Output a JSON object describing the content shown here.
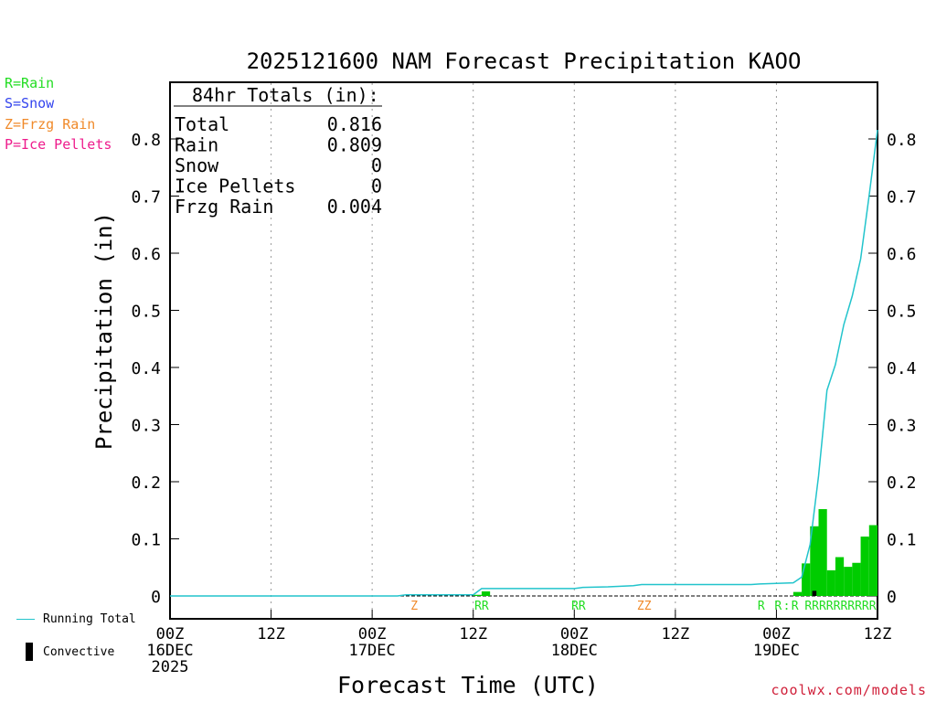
{
  "title": "2025121600 NAM Forecast Precipitation KAOO",
  "ylabel": "Precipitation (in)",
  "xlabel": "Forecast Time (UTC)",
  "source": "coolwx.com/models",
  "precip_types": [
    {
      "label": "R=Rain",
      "color": "#22dd22"
    },
    {
      "label": "S=Snow",
      "color": "#3344ee"
    },
    {
      "label": "Z=Frzg Rain",
      "color": "#f08a2a"
    },
    {
      "label": "P=Ice Pellets",
      "color": "#ee1c8c"
    }
  ],
  "legend": {
    "running_total": "Running Total",
    "convective": "Convective"
  },
  "totals_box": {
    "header": "84hr Totals (in):",
    "rows": [
      {
        "label": "Total",
        "value": "0.816"
      },
      {
        "label": "Rain",
        "value": "0.809"
      },
      {
        "label": "Snow",
        "value": "0"
      },
      {
        "label": "Ice Pellets",
        "value": "0"
      },
      {
        "label": "Frzg Rain",
        "value": "0.004"
      }
    ]
  },
  "colors": {
    "running_total": "#22c4cc",
    "bars": "#00cc00",
    "convective": "#000000",
    "grid": "#999999"
  },
  "chart_data": {
    "type": "bar",
    "x_unit": "forecast hour",
    "xlim": [
      0,
      84
    ],
    "ylim": [
      -0.04,
      0.9
    ],
    "yticks": [
      0,
      0.1,
      0.2,
      0.3,
      0.4,
      0.5,
      0.6,
      0.7,
      0.8
    ],
    "ytick_labels": [
      "0",
      "0.1",
      "0.2",
      "0.3",
      "0.4",
      "0.5",
      "0.6",
      "0.7",
      "0.8"
    ],
    "xticks": [
      {
        "hour": 0,
        "lines": [
          "00Z",
          "16DEC",
          "2025"
        ]
      },
      {
        "hour": 12,
        "lines": [
          "12Z"
        ]
      },
      {
        "hour": 24,
        "lines": [
          "00Z",
          "17DEC"
        ]
      },
      {
        "hour": 36,
        "lines": [
          "12Z"
        ]
      },
      {
        "hour": 48,
        "lines": [
          "00Z",
          "18DEC"
        ]
      },
      {
        "hour": 60,
        "lines": [
          "12Z"
        ]
      },
      {
        "hour": 72,
        "lines": [
          "00Z",
          "19DEC"
        ]
      },
      {
        "hour": 84,
        "lines": [
          "12Z"
        ]
      }
    ],
    "grid_hours": [
      12,
      24,
      36,
      48,
      60,
      72
    ],
    "series": [
      {
        "name": "Running Total",
        "type": "line",
        "points": [
          [
            0,
            0.0
          ],
          [
            27,
            0.0
          ],
          [
            28,
            0.002
          ],
          [
            36,
            0.002
          ],
          [
            37,
            0.013
          ],
          [
            48,
            0.013
          ],
          [
            49,
            0.015
          ],
          [
            52,
            0.016
          ],
          [
            55,
            0.018
          ],
          [
            56,
            0.02
          ],
          [
            60,
            0.02
          ],
          [
            69,
            0.02
          ],
          [
            70,
            0.021
          ],
          [
            72,
            0.022
          ],
          [
            74,
            0.023
          ],
          [
            75,
            0.033
          ],
          [
            76,
            0.09
          ],
          [
            77,
            0.21
          ],
          [
            78,
            0.36
          ],
          [
            79,
            0.405
          ],
          [
            80,
            0.475
          ],
          [
            81,
            0.525
          ],
          [
            82,
            0.59
          ],
          [
            83,
            0.7
          ],
          [
            84,
            0.816
          ]
        ]
      },
      {
        "name": "Hourly",
        "type": "bar",
        "bars": [
          [
            36.5,
            0.002
          ],
          [
            37.5,
            0.008
          ],
          [
            74.5,
            0.007
          ],
          [
            75.5,
            0.057
          ],
          [
            76.5,
            0.122
          ],
          [
            77.5,
            0.152
          ],
          [
            78.5,
            0.045
          ],
          [
            79.5,
            0.068
          ],
          [
            80.5,
            0.051
          ],
          [
            81.5,
            0.058
          ],
          [
            82.5,
            0.104
          ],
          [
            83.5,
            0.124
          ]
        ],
        "convective": [
          [
            76.5,
            0.009
          ]
        ]
      }
    ],
    "type_markers": [
      {
        "hour": 29,
        "text": "Z",
        "color": "#f08a2a"
      },
      {
        "hour": 37,
        "text": "RR",
        "color": "#22dd22"
      },
      {
        "hour": 48.5,
        "text": "RR",
        "color": "#22dd22"
      },
      {
        "hour": 56.3,
        "text": "ZZ",
        "color": "#f08a2a"
      },
      {
        "hour": 70.2,
        "text": "R",
        "color": "#22dd22"
      },
      {
        "hour": 72.2,
        "text": "R",
        "color": "#22dd22"
      },
      {
        "hour": 73.2,
        "text": ":",
        "color": "#22dd22"
      },
      {
        "hour": 74.2,
        "text": "R",
        "color": "#22dd22"
      },
      {
        "hour": 79.6,
        "text": "RRRRRRRRRR",
        "color": "#22dd22"
      }
    ]
  }
}
